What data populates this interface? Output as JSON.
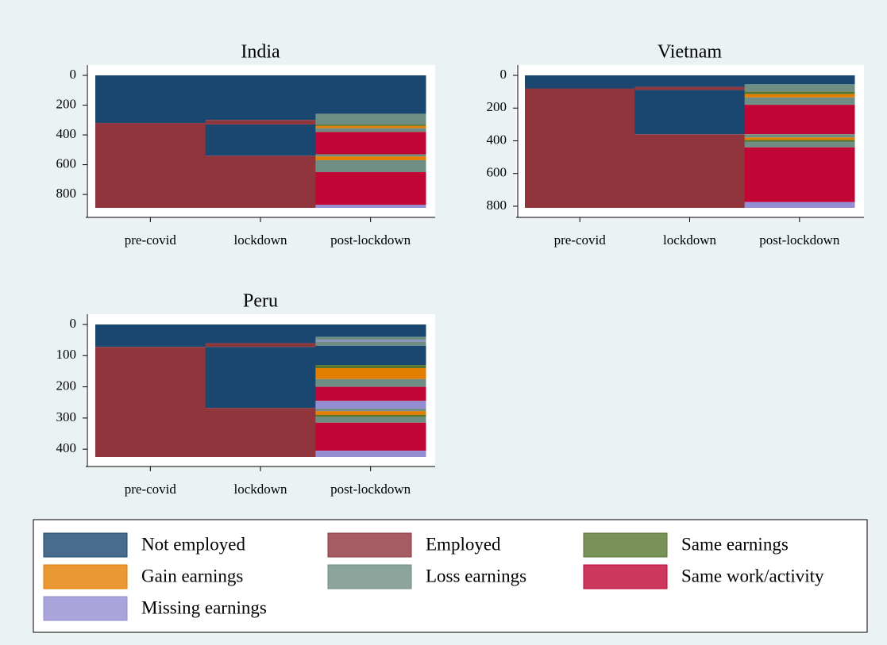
{
  "chart_data": [
    {
      "type": "sequence",
      "title": "India",
      "categories": [
        "pre-covid",
        "lockdown",
        "post-lockdown"
      ],
      "ylim": [
        0,
        890
      ],
      "yticks": [
        0,
        200,
        400,
        600,
        800
      ],
      "stacks": [
        [
          {
            "state": 0,
            "value": 320
          },
          {
            "state": 1,
            "value": 570
          }
        ],
        [
          {
            "state": 0,
            "value": 300
          },
          {
            "state": 1,
            "value": 30
          },
          {
            "state": 0,
            "value": 210
          },
          {
            "state": 1,
            "value": 350
          }
        ],
        [
          {
            "state": 0,
            "value": 258
          },
          {
            "state": 4,
            "value": 72
          },
          {
            "state": 2,
            "value": 10
          },
          {
            "state": 3,
            "value": 15
          },
          {
            "state": 4,
            "value": 25
          },
          {
            "state": 5,
            "value": 150
          },
          {
            "state": 4,
            "value": 15
          },
          {
            "state": 3,
            "value": 25
          },
          {
            "state": 4,
            "value": 80
          },
          {
            "state": 5,
            "value": 220
          },
          {
            "state": 6,
            "value": 20
          }
        ]
      ]
    },
    {
      "type": "sequence",
      "title": "Vietnam",
      "categories": [
        "pre-covid",
        "lockdown",
        "post-lockdown"
      ],
      "ylim": [
        0,
        810
      ],
      "yticks": [
        0,
        200,
        400,
        600,
        800
      ],
      "stacks": [
        [
          {
            "state": 0,
            "value": 80
          },
          {
            "state": 1,
            "value": 730
          }
        ],
        [
          {
            "state": 0,
            "value": 70
          },
          {
            "state": 1,
            "value": 20
          },
          {
            "state": 0,
            "value": 270
          },
          {
            "state": 1,
            "value": 450
          }
        ],
        [
          {
            "state": 0,
            "value": 55
          },
          {
            "state": 4,
            "value": 45
          },
          {
            "state": 2,
            "value": 15
          },
          {
            "state": 3,
            "value": 20
          },
          {
            "state": 4,
            "value": 45
          },
          {
            "state": 5,
            "value": 180
          },
          {
            "state": 4,
            "value": 20
          },
          {
            "state": 3,
            "value": 15
          },
          {
            "state": 2,
            "value": 10
          },
          {
            "state": 4,
            "value": 35
          },
          {
            "state": 5,
            "value": 335
          },
          {
            "state": 6,
            "value": 35
          }
        ]
      ]
    },
    {
      "type": "sequence",
      "title": "Peru",
      "categories": [
        "pre-covid",
        "lockdown",
        "post-lockdown"
      ],
      "ylim": [
        0,
        425
      ],
      "yticks": [
        0,
        100,
        200,
        300,
        400
      ],
      "stacks": [
        [
          {
            "state": 0,
            "value": 72
          },
          {
            "state": 1,
            "value": 353
          }
        ],
        [
          {
            "state": 0,
            "value": 60
          },
          {
            "state": 1,
            "value": 12
          },
          {
            "state": 0,
            "value": 196
          },
          {
            "state": 1,
            "value": 157
          }
        ],
        [
          {
            "state": 0,
            "value": 40
          },
          {
            "state": 4,
            "value": 10
          },
          {
            "state": 6,
            "value": 5
          },
          {
            "state": 4,
            "value": 13
          },
          {
            "state": 0,
            "value": 62
          },
          {
            "state": 2,
            "value": 10
          },
          {
            "state": 3,
            "value": 35
          },
          {
            "state": 4,
            "value": 25
          },
          {
            "state": 5,
            "value": 45
          },
          {
            "state": 6,
            "value": 25
          },
          {
            "state": 4,
            "value": 8
          },
          {
            "state": 3,
            "value": 12
          },
          {
            "state": 2,
            "value": 7
          },
          {
            "state": 4,
            "value": 18
          },
          {
            "state": 5,
            "value": 90
          },
          {
            "state": 6,
            "value": 20
          }
        ]
      ]
    }
  ],
  "legend": [
    {
      "name": "Not employed",
      "color": "#1a476f"
    },
    {
      "name": "Employed",
      "color": "#90353b"
    },
    {
      "name": "Same earnings",
      "color": "#55752f"
    },
    {
      "name": "Gain earnings",
      "color": "#e37e00"
    },
    {
      "name": "Loss earnings",
      "color": "#6e8e84"
    },
    {
      "name": "Same work/activity",
      "color": "#c10534"
    },
    {
      "name": "Missing earnings",
      "color": "#938dd2"
    }
  ]
}
